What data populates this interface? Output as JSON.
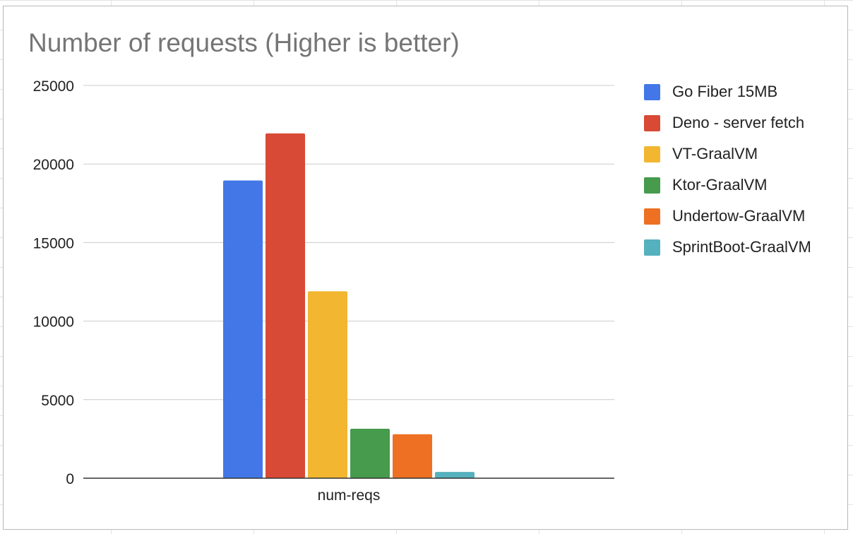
{
  "chart_data": {
    "type": "bar",
    "title": "Number of requests (Higher is better)",
    "categories": [
      "num-reqs"
    ],
    "xlabel": "",
    "ylabel": "",
    "ylim": [
      0,
      25000
    ],
    "yticks": [
      0,
      5000,
      10000,
      15000,
      20000,
      25000
    ],
    "ytick_labels": [
      "0",
      "5000",
      "10000",
      "15000",
      "20000",
      "25000"
    ],
    "grid": true,
    "legend_position": "right",
    "series": [
      {
        "name": "Go Fiber 15MB",
        "values": [
          18950
        ],
        "color": "#4377e8"
      },
      {
        "name": "Deno - server fetch",
        "values": [
          21950
        ],
        "color": "#d84a35"
      },
      {
        "name": "VT-GraalVM",
        "values": [
          11900
        ],
        "color": "#f2b630"
      },
      {
        "name": "Ktor-GraalVM",
        "values": [
          3150
        ],
        "color": "#469b4c"
      },
      {
        "name": "Undertow-GraalVM",
        "values": [
          2800
        ],
        "color": "#ee7023"
      },
      {
        "name": "SprintBoot-GraalVM",
        "values": [
          400
        ],
        "color": "#55b1bd"
      }
    ]
  }
}
